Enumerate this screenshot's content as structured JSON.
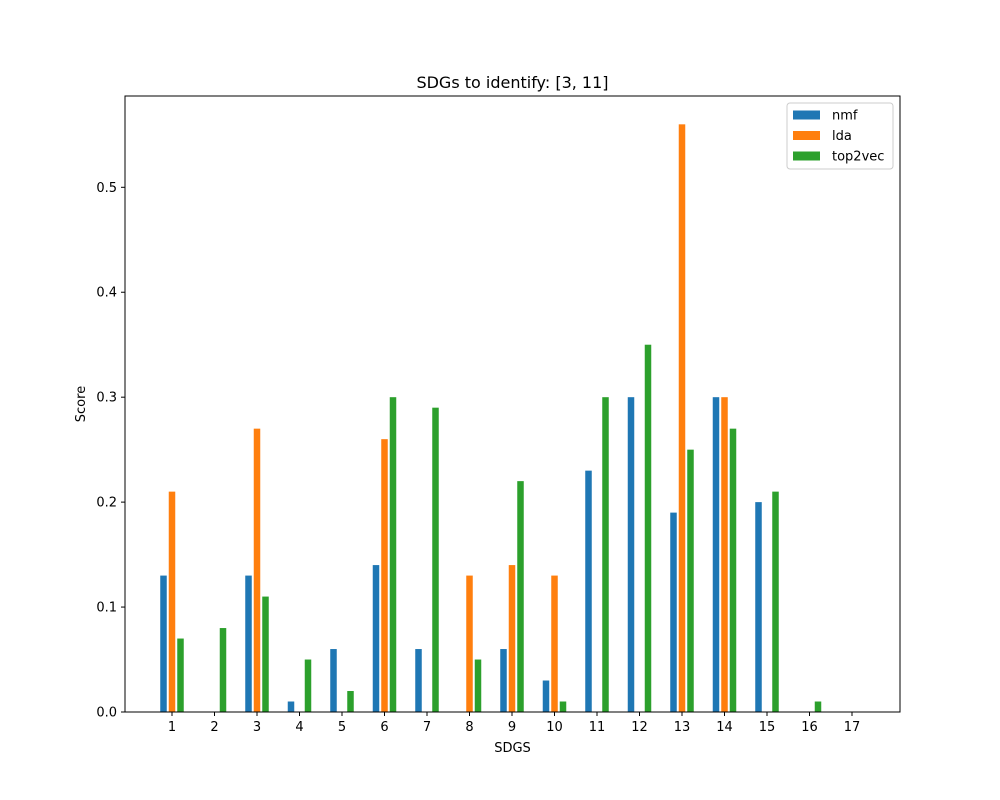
{
  "chart_data": {
    "type": "bar",
    "title": "SDGs to identify: [3, 11]",
    "xlabel": "SDGS",
    "ylabel": "Score",
    "categories": [
      "1",
      "2",
      "3",
      "4",
      "5",
      "6",
      "7",
      "8",
      "9",
      "10",
      "11",
      "12",
      "13",
      "14",
      "15",
      "16",
      "17"
    ],
    "ylim": [
      0,
      0.587
    ],
    "yticks": [
      "0.0",
      "0.1",
      "0.2",
      "0.3",
      "0.4",
      "0.5"
    ],
    "grid": false,
    "legend_position": "top-right",
    "series": [
      {
        "name": "nmf",
        "color": "#1f77b4",
        "values": [
          0.13,
          0,
          0.13,
          0.01,
          0.06,
          0.14,
          0.06,
          0,
          0.06,
          0.03,
          0.23,
          0.3,
          0.19,
          0.3,
          0.2,
          0,
          0
        ]
      },
      {
        "name": "lda",
        "color": "#ff7f0e",
        "values": [
          0.21,
          0,
          0.27,
          0,
          0,
          0.26,
          0,
          0.13,
          0.14,
          0.13,
          0,
          0,
          0.56,
          0.3,
          0,
          0,
          0
        ]
      },
      {
        "name": "top2vec",
        "color": "#2ca02c",
        "values": [
          0.07,
          0.08,
          0.11,
          0.05,
          0.02,
          0.3,
          0.29,
          0.05,
          0.22,
          0.01,
          0.3,
          0.35,
          0.25,
          0.27,
          0.21,
          0.01,
          0
        ]
      }
    ]
  }
}
